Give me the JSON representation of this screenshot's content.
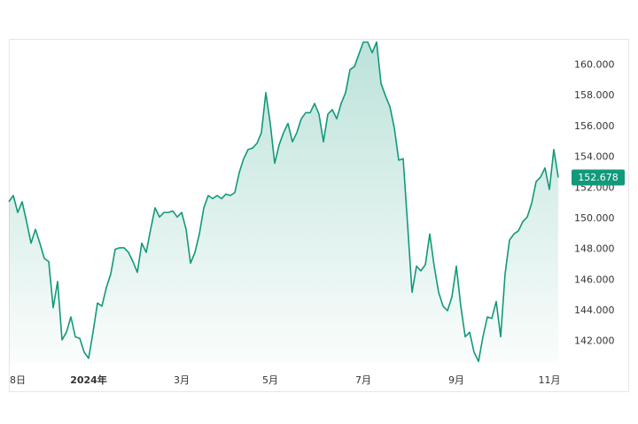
{
  "chart_data": {
    "type": "line",
    "categories": [
      null,
      null,
      "8日",
      null,
      null,
      null,
      null,
      null,
      null,
      null,
      null,
      null,
      null,
      null,
      null,
      null,
      null,
      null,
      "2024年",
      null,
      null,
      null,
      null,
      null,
      null,
      null,
      null,
      null,
      null,
      null,
      null,
      null,
      null,
      null,
      null,
      null,
      null,
      null,
      null,
      "3月",
      null,
      null,
      null,
      null,
      null,
      null,
      null,
      null,
      null,
      null,
      null,
      null,
      null,
      null,
      null,
      null,
      null,
      null,
      null,
      "5月",
      null,
      null,
      null,
      null,
      null,
      null,
      null,
      null,
      null,
      null,
      null,
      null,
      null,
      null,
      null,
      null,
      null,
      null,
      null,
      null,
      "7月",
      null,
      null,
      null,
      null,
      null,
      null,
      null,
      null,
      null,
      null,
      null,
      null,
      null,
      null,
      null,
      null,
      null,
      null,
      null,
      null,
      "9月",
      null,
      null,
      null,
      null,
      null,
      null,
      null,
      null,
      null,
      null,
      null,
      null,
      null,
      null,
      null,
      null,
      null,
      null,
      null,
      null,
      "11月",
      null,
      null
    ],
    "values": [
      151.1,
      151.5,
      150.4,
      151.1,
      149.8,
      148.4,
      149.3,
      148.4,
      147.4,
      147.2,
      144.2,
      145.9,
      142.1,
      142.6,
      143.6,
      142.3,
      142.2,
      141.3,
      140.9,
      142.6,
      144.5,
      144.3,
      145.5,
      146.4,
      148.0,
      148.1,
      148.1,
      147.8,
      147.2,
      146.5,
      148.4,
      147.8,
      149.3,
      150.7,
      150.1,
      150.4,
      150.4,
      150.5,
      150.1,
      150.4,
      149.3,
      147.1,
      147.8,
      149.0,
      150.7,
      151.5,
      151.3,
      151.5,
      151.3,
      151.6,
      151.5,
      151.7,
      153.0,
      153.9,
      154.5,
      154.6,
      154.9,
      155.6,
      158.2,
      156.2,
      153.6,
      154.8,
      155.6,
      156.2,
      155.0,
      155.6,
      156.5,
      156.9,
      156.9,
      157.5,
      156.8,
      155.0,
      156.8,
      157.1,
      156.5,
      157.5,
      158.2,
      159.7,
      159.9,
      160.7,
      161.5,
      161.5,
      160.8,
      161.5,
      158.8,
      158.0,
      157.3,
      155.9,
      153.8,
      153.9,
      149.6,
      145.2,
      146.9,
      146.6,
      147.0,
      149.0,
      146.9,
      145.2,
      144.3,
      144.0,
      144.9,
      146.9,
      144.3,
      142.3,
      142.6,
      141.3,
      140.7,
      142.3,
      143.6,
      143.5,
      144.6,
      142.3,
      146.4,
      148.6,
      149.0,
      149.2,
      149.8,
      150.1,
      151.0,
      152.4,
      152.7,
      153.3,
      151.9,
      154.5,
      152.678
    ],
    "color": "#11997a",
    "current_value": 152.678,
    "ylim": [
      140.6,
      161.7
    ],
    "yticks": [
      {
        "value": 142,
        "label": "142.000"
      },
      {
        "value": 144,
        "label": "144.000"
      },
      {
        "value": 146,
        "label": "146.000"
      },
      {
        "value": 148,
        "label": "148.000"
      },
      {
        "value": 150,
        "label": "150.000"
      },
      {
        "value": 152,
        "label": "152.000"
      },
      {
        "value": 154,
        "label": "154.000"
      },
      {
        "value": 156,
        "label": "156.000"
      },
      {
        "value": 158,
        "label": "158.000"
      },
      {
        "value": 160,
        "label": "160.000"
      }
    ],
    "grid": false
  }
}
